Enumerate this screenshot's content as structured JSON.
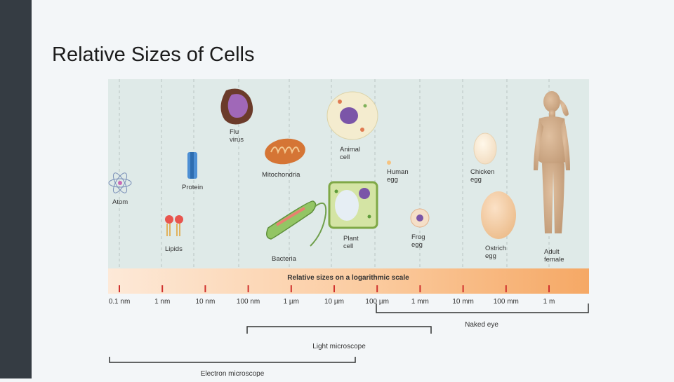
{
  "slide": {
    "title": "Relative Sizes of Cells",
    "sidebar_color": "#353c43",
    "background": "#f3f6f8"
  },
  "figure": {
    "band_title": "Relative sizes on a logarithmic scale",
    "scale_ticks": [
      "0.1 nm",
      "1 nm",
      "10 nm",
      "100 nm",
      "1 µm",
      "10 µm",
      "100 µm",
      "1 mm",
      "10 mm",
      "100 mm",
      "1 m"
    ],
    "items": [
      {
        "key": "atom",
        "label": [
          "Atom"
        ]
      },
      {
        "key": "lipids",
        "label": [
          "Lipids"
        ]
      },
      {
        "key": "protein",
        "label": [
          "Protein"
        ]
      },
      {
        "key": "flu_virus",
        "label": [
          "Flu",
          "virus"
        ]
      },
      {
        "key": "mitochondria",
        "label": [
          "Mitochondria"
        ]
      },
      {
        "key": "bacteria",
        "label": [
          "Bacteria"
        ]
      },
      {
        "key": "animal_cell",
        "label": [
          "Animal",
          "cell"
        ]
      },
      {
        "key": "plant_cell",
        "label": [
          "Plant",
          "cell"
        ]
      },
      {
        "key": "human_egg",
        "label": [
          "Human",
          "egg"
        ]
      },
      {
        "key": "frog_egg",
        "label": [
          "Frog",
          "egg"
        ]
      },
      {
        "key": "chicken_egg",
        "label": [
          "Chicken",
          "egg"
        ]
      },
      {
        "key": "ostrich_egg",
        "label": [
          "Ostrich",
          "egg"
        ]
      },
      {
        "key": "adult_female",
        "label": [
          "Adult",
          "female"
        ]
      }
    ],
    "ranges": {
      "naked_eye": "Naked eye",
      "light_microscope": "Light microscope",
      "electron_microscope": "Electron microscope"
    },
    "colors": {
      "panel": "#dde9e7",
      "band_start": "#fde7d3",
      "band_end": "#f6ac6c",
      "tick": "#d0312d",
      "bracket": "#333333"
    }
  }
}
